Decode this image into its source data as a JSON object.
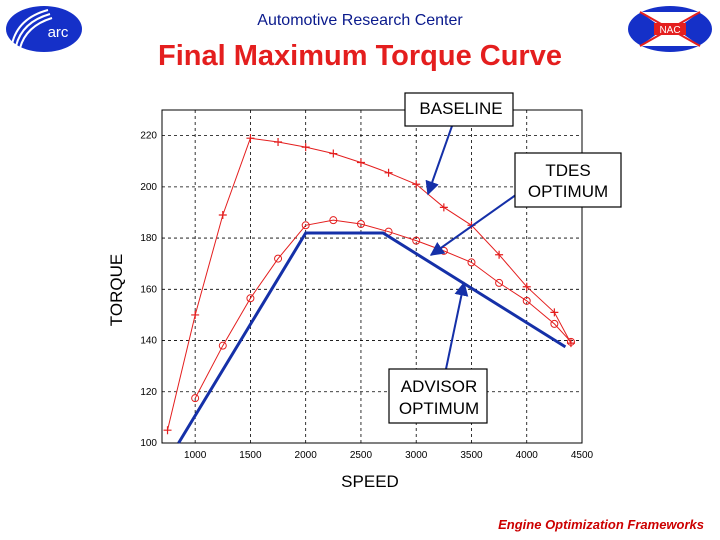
{
  "header": {
    "org_name": "Automotive Research Center",
    "logo_left_text": "arc",
    "logo_right_text": "NAC"
  },
  "title": "Final Maximum Torque Curve",
  "footer": "Engine Optimization Frameworks",
  "colors": {
    "title": "#e41e1e",
    "header": "#0a1a8c",
    "baseline": "#e41e1e",
    "tdes": "#e41e1e",
    "advisor": "#1530a8",
    "arrow": "#1530a8"
  },
  "chart_data": {
    "type": "line",
    "xlabel": "SPEED",
    "ylabel": "TORQUE",
    "xlim": [
      700,
      4500
    ],
    "ylim": [
      100,
      230
    ],
    "xticks": [
      1000,
      1500,
      2000,
      2500,
      3000,
      3500,
      4000,
      4500
    ],
    "yticks": [
      100,
      120,
      140,
      160,
      180,
      200,
      220
    ],
    "grid": true,
    "series": [
      {
        "name": "BASELINE",
        "marker": "plus",
        "x": [
          750,
          1000,
          1250,
          1500,
          1750,
          2000,
          2250,
          2500,
          2750,
          3000,
          3250,
          3500,
          3750,
          4000,
          4250,
          4400
        ],
        "y": [
          105,
          150,
          189,
          219,
          217.5,
          215.5,
          213,
          209.5,
          205.5,
          201,
          192,
          185,
          173.5,
          161,
          151,
          139
        ]
      },
      {
        "name": "TDES OPTIMUM",
        "marker": "circle",
        "x": [
          1000,
          1250,
          1500,
          1750,
          2000,
          2250,
          2500,
          2750,
          3000,
          3250,
          3500,
          3750,
          4000,
          4250,
          4400
        ],
        "y": [
          117.5,
          138,
          156.5,
          172,
          185,
          187,
          185.5,
          182.5,
          179,
          175,
          170.5,
          162.5,
          155.5,
          146.5,
          139.5
        ]
      },
      {
        "name": "ADVISOR OPTIMUM",
        "marker": "none",
        "x": [
          850,
          2000,
          2700,
          4350
        ],
        "y": [
          100,
          182,
          182,
          137.5
        ]
      }
    ],
    "annotations": [
      {
        "text": "BASELINE",
        "target_series": "BASELINE"
      },
      {
        "text": [
          "TDES",
          "OPTIMUM"
        ],
        "target_series": "TDES OPTIMUM"
      },
      {
        "text": [
          "ADVISOR",
          "OPTIMUM"
        ],
        "target_series": "ADVISOR OPTIMUM"
      }
    ]
  }
}
